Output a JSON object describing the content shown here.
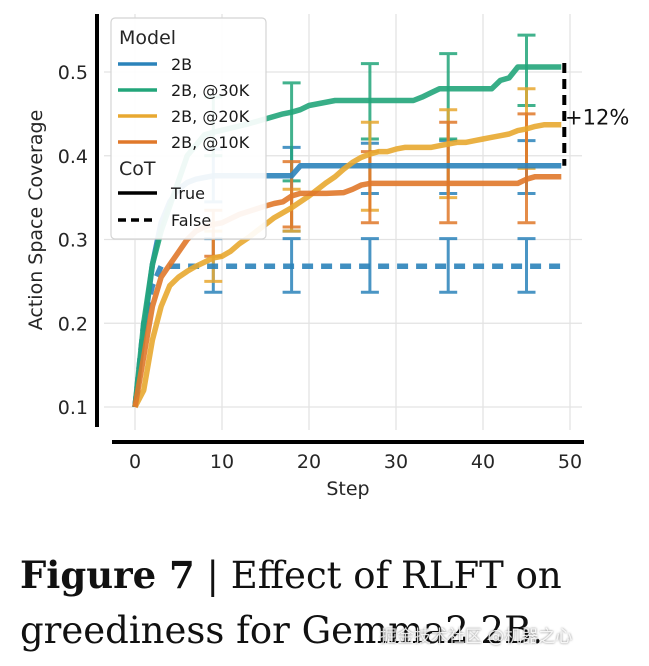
{
  "chart_data": {
    "type": "line",
    "title": "",
    "xlabel": "Step",
    "ylabel": "Action Space Coverage",
    "xlim": [
      -3,
      52
    ],
    "ylim": [
      0.08,
      0.56
    ],
    "xticks": [
      0,
      10,
      20,
      30,
      40,
      50
    ],
    "yticks": [
      0.1,
      0.2,
      0.3,
      0.4,
      0.5
    ],
    "xtick_labels": [
      "0",
      "10",
      "20",
      "30",
      "40",
      "50"
    ],
    "ytick_labels": [
      "0.1",
      "0.2",
      "0.3",
      "0.4",
      "0.5"
    ],
    "grid": true,
    "legend": {
      "placement": "top-left",
      "model_title": "Model",
      "model_entries": [
        {
          "label": "2B",
          "color": "#2b83ba"
        },
        {
          "label": "2B, @30K",
          "color": "#22a57a"
        },
        {
          "label": "2B, @20K",
          "color": "#e8a830"
        },
        {
          "label": "2B, @10K",
          "color": "#e0782a"
        }
      ],
      "cot_title": "CoT",
      "cot_entries": [
        {
          "label": "True",
          "style": "solid"
        },
        {
          "label": "False",
          "style": "dashed"
        }
      ]
    },
    "series": [
      {
        "name": "2B, CoT=False",
        "color": "#2b83ba",
        "style": "dashed",
        "x": [
          0,
          1,
          2,
          3,
          49
        ],
        "y": [
          0.1,
          0.2,
          0.245,
          0.268,
          0.268
        ],
        "errorbars": [
          {
            "x": 9,
            "low": 0.237,
            "high": 0.301
          },
          {
            "x": 18,
            "low": 0.237,
            "high": 0.301
          },
          {
            "x": 27,
            "low": 0.237,
            "high": 0.301
          },
          {
            "x": 36,
            "low": 0.237,
            "high": 0.301
          },
          {
            "x": 45,
            "low": 0.237,
            "high": 0.301
          }
        ]
      },
      {
        "name": "2B, CoT=True",
        "color": "#2b83ba",
        "style": "solid",
        "x": [
          0,
          1,
          2,
          3,
          4,
          5,
          6,
          7,
          8,
          9,
          10,
          18,
          19,
          49
        ],
        "y": [
          0.1,
          0.19,
          0.27,
          0.32,
          0.345,
          0.36,
          0.368,
          0.372,
          0.374,
          0.376,
          0.376,
          0.376,
          0.388,
          0.388
        ],
        "errorbars": [
          {
            "x": 9,
            "low": 0.345,
            "high": 0.408
          },
          {
            "x": 18,
            "low": 0.31,
            "high": 0.41
          },
          {
            "x": 27,
            "low": 0.355,
            "high": 0.415
          },
          {
            "x": 36,
            "low": 0.355,
            "high": 0.418
          },
          {
            "x": 45,
            "low": 0.355,
            "high": 0.418
          }
        ]
      },
      {
        "name": "2B, @30K, CoT=True",
        "color": "#22a57a",
        "style": "solid",
        "x": [
          0,
          1,
          2,
          3,
          4,
          5,
          6,
          8,
          9,
          13,
          17,
          18,
          19,
          20,
          23,
          24,
          32,
          33,
          34,
          35,
          41,
          42,
          43,
          44,
          49
        ],
        "y": [
          0.1,
          0.2,
          0.27,
          0.31,
          0.34,
          0.37,
          0.4,
          0.425,
          0.428,
          0.438,
          0.45,
          0.452,
          0.455,
          0.46,
          0.466,
          0.466,
          0.466,
          0.47,
          0.475,
          0.48,
          0.48,
          0.49,
          0.493,
          0.506,
          0.506
        ],
        "errorbars": [
          {
            "x": 9,
            "low": 0.4,
            "high": 0.47
          },
          {
            "x": 18,
            "low": 0.37,
            "high": 0.487
          },
          {
            "x": 27,
            "low": 0.42,
            "high": 0.51
          },
          {
            "x": 36,
            "low": 0.42,
            "high": 0.522
          },
          {
            "x": 45,
            "low": 0.46,
            "high": 0.544
          }
        ]
      },
      {
        "name": "2B, @20K, CoT=True",
        "color": "#e8a830",
        "style": "solid",
        "x": [
          0,
          1,
          2,
          3,
          4,
          5,
          6,
          7,
          8,
          9,
          10,
          11,
          12,
          13,
          14,
          15,
          16,
          17,
          18,
          19,
          20,
          21,
          22,
          23,
          24,
          25,
          26,
          27,
          28,
          29,
          30,
          31,
          32,
          33,
          34,
          35,
          36,
          37,
          38,
          39,
          40,
          41,
          42,
          43,
          44,
          45,
          46,
          47,
          48,
          49
        ],
        "y": [
          0.1,
          0.12,
          0.18,
          0.22,
          0.245,
          0.255,
          0.262,
          0.268,
          0.273,
          0.278,
          0.28,
          0.286,
          0.295,
          0.302,
          0.31,
          0.318,
          0.326,
          0.332,
          0.338,
          0.345,
          0.352,
          0.36,
          0.368,
          0.375,
          0.384,
          0.392,
          0.398,
          0.402,
          0.405,
          0.405,
          0.408,
          0.41,
          0.41,
          0.41,
          0.41,
          0.412,
          0.414,
          0.416,
          0.416,
          0.418,
          0.42,
          0.422,
          0.424,
          0.426,
          0.43,
          0.432,
          0.435,
          0.437,
          0.437,
          0.437
        ],
        "errorbars": [
          {
            "x": 9,
            "low": 0.25,
            "high": 0.31
          },
          {
            "x": 18,
            "low": 0.31,
            "high": 0.36
          },
          {
            "x": 27,
            "low": 0.335,
            "high": 0.44
          },
          {
            "x": 36,
            "low": 0.35,
            "high": 0.455
          },
          {
            "x": 45,
            "low": 0.385,
            "high": 0.48
          }
        ]
      },
      {
        "name": "2B, @10K, CoT=True",
        "color": "#e0782a",
        "style": "solid",
        "x": [
          0,
          1,
          2,
          3,
          4,
          5,
          6,
          7,
          8,
          9,
          10,
          12,
          15,
          16,
          17,
          18,
          19,
          20,
          22,
          24,
          25,
          26,
          27,
          28,
          44,
          45,
          46,
          49
        ],
        "y": [
          0.1,
          0.16,
          0.22,
          0.255,
          0.27,
          0.285,
          0.3,
          0.31,
          0.315,
          0.318,
          0.32,
          0.33,
          0.34,
          0.343,
          0.345,
          0.352,
          0.355,
          0.355,
          0.355,
          0.356,
          0.36,
          0.365,
          0.367,
          0.367,
          0.367,
          0.372,
          0.375,
          0.375
        ],
        "errorbars": [
          {
            "x": 9,
            "low": 0.28,
            "high": 0.335
          },
          {
            "x": 18,
            "low": 0.315,
            "high": 0.393
          },
          {
            "x": 27,
            "low": 0.32,
            "high": 0.405
          },
          {
            "x": 36,
            "low": 0.32,
            "high": 0.44
          },
          {
            "x": 45,
            "low": 0.32,
            "high": 0.45
          }
        ]
      }
    ],
    "annotations": [
      {
        "text": "+12%",
        "x": 49,
        "y_from": 0.388,
        "y_to": 0.506,
        "style": "dashed-bracket"
      }
    ]
  },
  "caption": {
    "figure_label": "Figure 7",
    "separator": "|",
    "text": "Effect of RLFT on greediness for Gemma2 2B."
  },
  "watermark": "掘金技术社区 @机器之心"
}
